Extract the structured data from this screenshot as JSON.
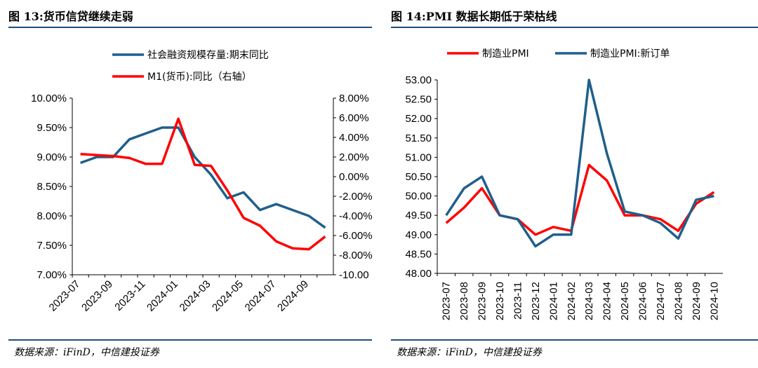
{
  "left": {
    "title": "图 13:货币信贷继续走弱",
    "source": "数据来源：iFinD，中信建投证券"
  },
  "right": {
    "title": "图 14:PMI 数据长期低于荣枯线",
    "source": "数据来源：iFinD，中信建投证券"
  },
  "chart_data": [
    {
      "type": "line",
      "categories": [
        "2023-07",
        "2023-08",
        "2023-09",
        "2023-10",
        "2023-11",
        "2023-12",
        "2024-01",
        "2024-02",
        "2024-03",
        "2024-04",
        "2024-05",
        "2024-06",
        "2024-07",
        "2024-08",
        "2024-09",
        "2024-10"
      ],
      "x_tick_labels": [
        "2023-07",
        "2023-09",
        "2023-11",
        "2024-01",
        "2024-03",
        "2024-05",
        "2024-07",
        "2024-09"
      ],
      "y_left_ticks": [
        "7.00%",
        "7.50%",
        "8.00%",
        "8.50%",
        "9.00%",
        "9.50%",
        "10.00%"
      ],
      "y_right_ticks": [
        "-10.00",
        "-8.00%",
        "-6.00%",
        "-4.00%",
        "-2.00%",
        "0.00%",
        "2.00%",
        "4.00%",
        "6.00%",
        "8.00%"
      ],
      "ylim_left": [
        7.0,
        10.0
      ],
      "ylim_right": [
        -10.0,
        8.0
      ],
      "legend_position": "top",
      "series": [
        {
          "name": "社会融资规模存量:期末同比",
          "axis": "left",
          "color": "#1f5f8b",
          "values": [
            8.9,
            9.0,
            9.0,
            9.3,
            9.4,
            9.5,
            9.5,
            9.0,
            8.7,
            8.3,
            8.4,
            8.1,
            8.2,
            8.1,
            8.0,
            7.8
          ]
        },
        {
          "name": "M1(货币):同比（右轴）",
          "axis": "right",
          "color": "#ff0000",
          "values": [
            2.3,
            2.2,
            2.1,
            1.9,
            1.3,
            1.3,
            5.9,
            1.2,
            1.1,
            -1.4,
            -4.2,
            -5.0,
            -6.6,
            -7.3,
            -7.4,
            -6.1
          ]
        }
      ]
    },
    {
      "type": "line",
      "categories": [
        "2023-07",
        "2023-08",
        "2023-09",
        "2023-10",
        "2023-11",
        "2023-12",
        "2024-01",
        "2024-02",
        "2024-03",
        "2024-04",
        "2024-05",
        "2024-06",
        "2024-07",
        "2024-08",
        "2024-09",
        "2024-10"
      ],
      "y_ticks": [
        "48.00",
        "48.50",
        "49.00",
        "49.50",
        "50.00",
        "50.50",
        "51.00",
        "51.50",
        "52.00",
        "52.50",
        "53.00"
      ],
      "ylim": [
        48.0,
        53.0
      ],
      "legend_position": "top",
      "series": [
        {
          "name": "制造业PMI",
          "color": "#ff0000",
          "values": [
            49.3,
            49.7,
            50.2,
            49.5,
            49.4,
            49.0,
            49.2,
            49.1,
            50.8,
            50.4,
            49.5,
            49.5,
            49.4,
            49.1,
            49.8,
            50.1
          ]
        },
        {
          "name": "制造业PMI:新订单",
          "color": "#1f5f8b",
          "values": [
            49.5,
            50.2,
            50.5,
            49.5,
            49.4,
            48.7,
            49.0,
            49.0,
            53.0,
            51.1,
            49.6,
            49.5,
            49.3,
            48.9,
            49.9,
            50.0
          ]
        }
      ]
    }
  ]
}
